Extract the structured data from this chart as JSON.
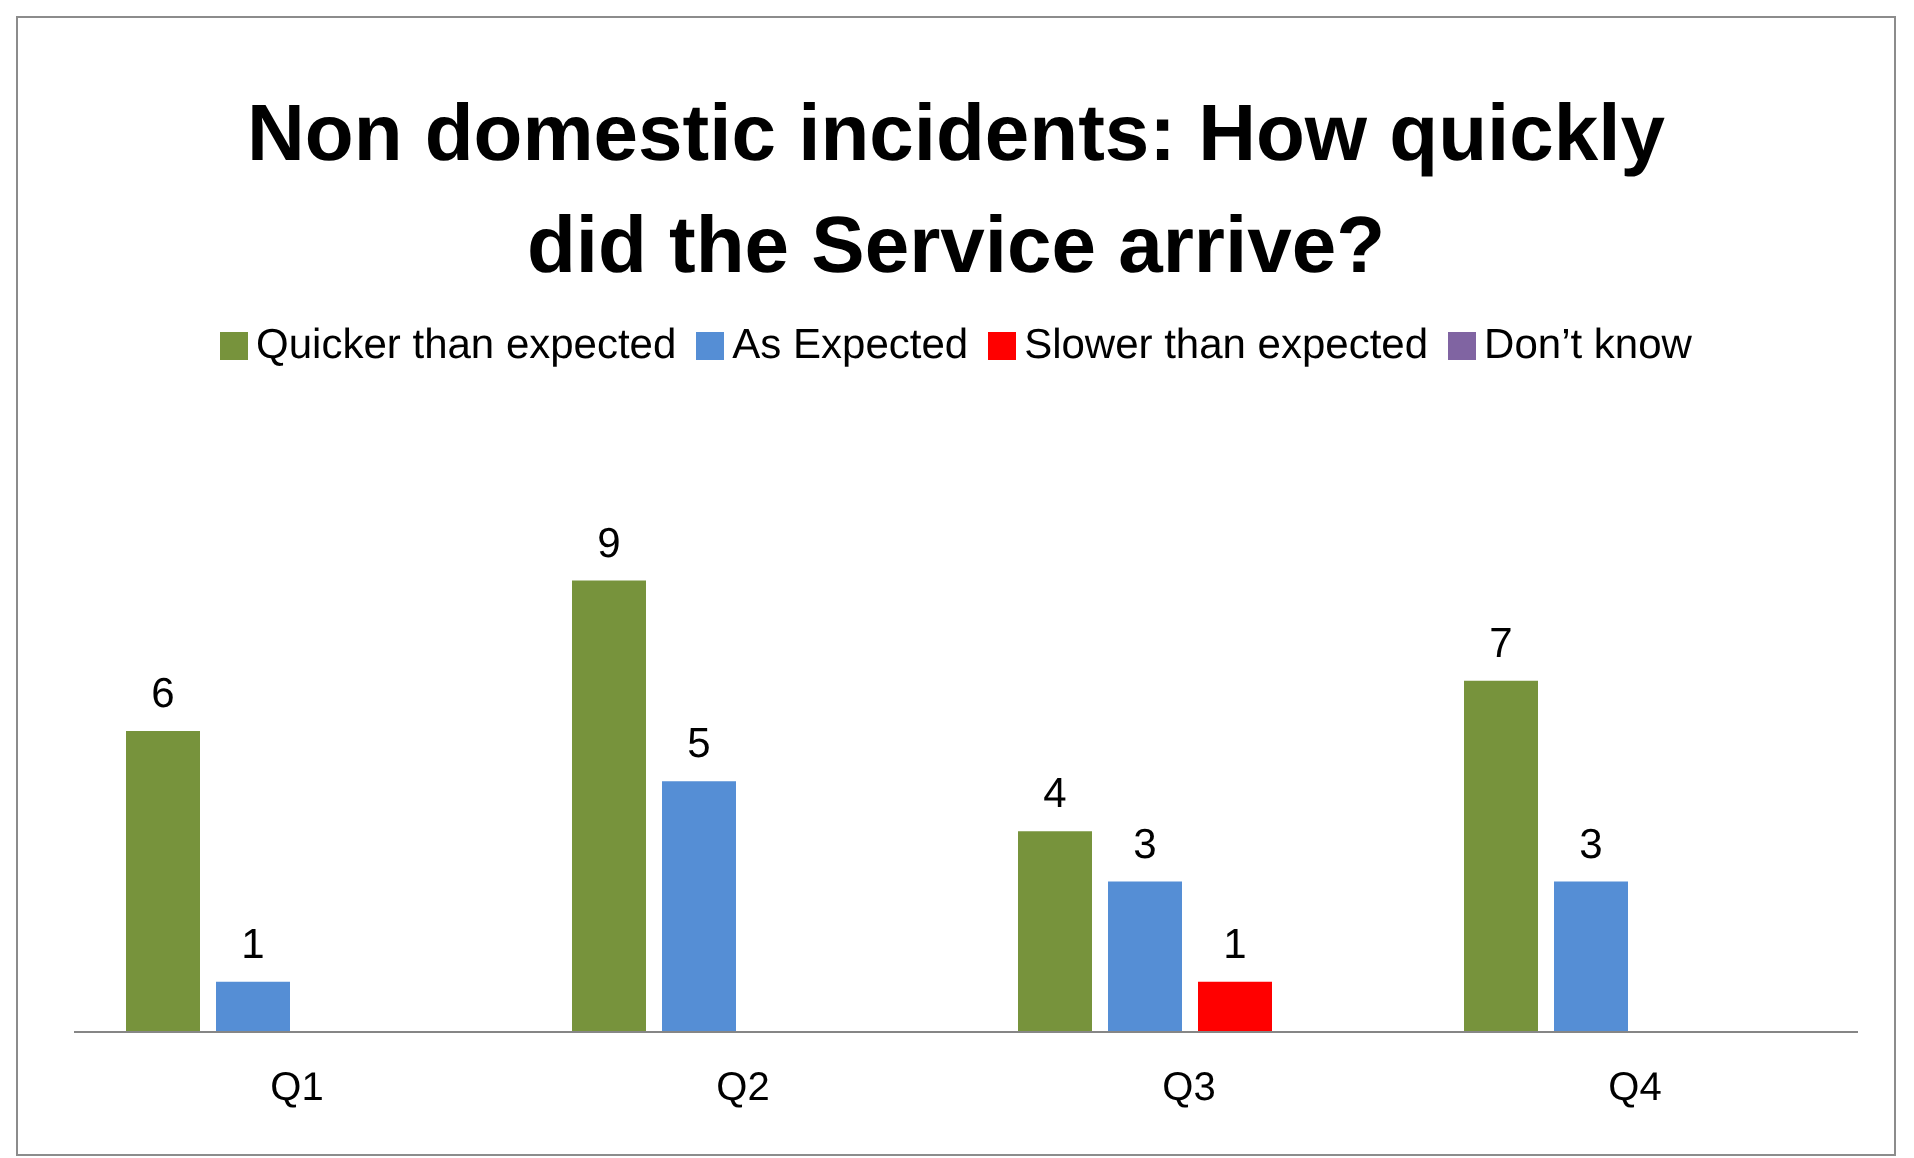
{
  "chart_data": {
    "type": "bar",
    "title": "Non domestic incidents: How quickly did the Service arrive?",
    "categories": [
      "Q1",
      "Q2",
      "Q3",
      "Q4"
    ],
    "series": [
      {
        "name": "Quicker than expected",
        "color": "#77933c",
        "values": [
          6,
          9,
          4,
          7
        ]
      },
      {
        "name": "As Expected",
        "color": "#558ed5",
        "values": [
          1,
          5,
          3,
          3
        ]
      },
      {
        "name": "Slower than expected",
        "color": "#ff0000",
        "values": [
          null,
          null,
          1,
          null
        ]
      },
      {
        "name": "Don’t know",
        "color": "#8064a2",
        "values": [
          null,
          null,
          null,
          null
        ]
      }
    ],
    "data_labels": true,
    "legend": "top",
    "grid": false
  }
}
